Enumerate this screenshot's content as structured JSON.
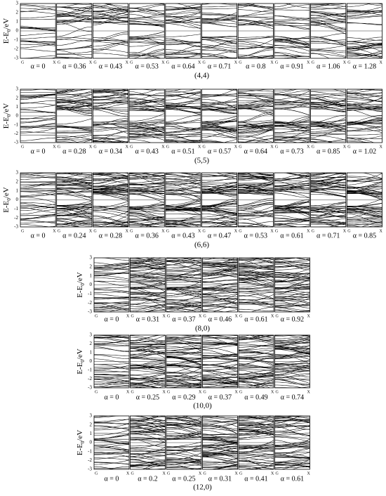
{
  "figure": {
    "y_label": {
      "main": "E-E",
      "sub": "0",
      "unit": "/eV"
    },
    "yticks": [
      3,
      2,
      1,
      0,
      -1,
      -2,
      -3
    ],
    "kpoints": [
      "G",
      "X"
    ],
    "rows": [
      {
        "label": "(4,4)",
        "alphas": [
          "α = 0",
          "α = 0.36",
          "α = 0.43",
          "α = 0.53",
          "α = 0.64",
          "α = 0.71",
          "α = 0.8",
          "α = 0.91",
          "α = 1.06",
          "α = 1.28"
        ]
      },
      {
        "label": "(5,5)",
        "alphas": [
          "α = 0",
          "α = 0.28",
          "α = 0.34",
          "α = 0.43",
          "α = 0.51",
          "α = 0.57",
          "α = 0.64",
          "α = 0.73",
          "α = 0.85",
          "α = 1.02"
        ]
      },
      {
        "label": "(6,6)",
        "alphas": [
          "α = 0",
          "α = 0.24",
          "α = 0.28",
          "α = 0.36",
          "α = 0.43",
          "α = 0.47",
          "α = 0.53",
          "α = 0.61",
          "α = 0.71",
          "α = 0.85"
        ]
      },
      {
        "label": "(8,0)",
        "alphas": [
          "α = 0",
          "α = 0.31",
          "α = 0.37",
          "α = 0.46",
          "α = 0.61",
          "α = 0.92"
        ]
      },
      {
        "label": "(10,0)",
        "alphas": [
          "α = 0",
          "α = 0.25",
          "α = 0.29",
          "α = 0.37",
          "α = 0.49",
          "α = 0.74"
        ]
      },
      {
        "label": "(12,0)",
        "alphas": [
          "α = 0",
          "α = 0.2",
          "α = 0.25",
          "α = 0.31",
          "α = 0.41",
          "α = 0.61"
        ]
      }
    ]
  }
}
